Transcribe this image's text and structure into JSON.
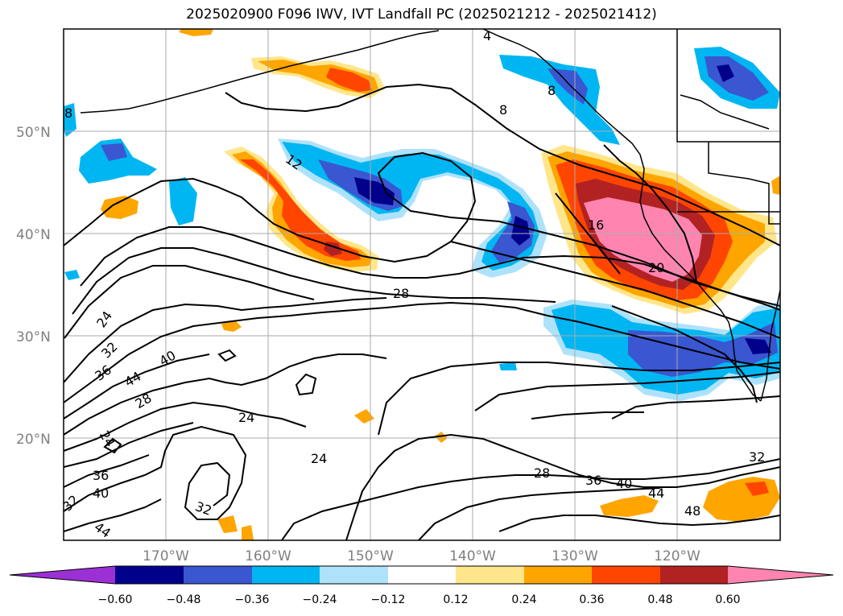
{
  "title": "2025020900 F096 IWV, IVT Landfall PC (2025021212 - 2025021412)",
  "map": {
    "projection": "plate-carree",
    "lon_range": [
      -180,
      -110
    ],
    "lat_range": [
      10,
      60
    ],
    "grid": true,
    "lat_ticks": [
      "50°N",
      "40°N",
      "30°N",
      "20°N"
    ],
    "lon_ticks": [
      "170°W",
      "160°W",
      "150°W",
      "140°W",
      "130°W",
      "120°W"
    ]
  },
  "contours": {
    "color": "#000000",
    "labels": [
      "8",
      "4",
      "8",
      "8",
      "12",
      "16",
      "20",
      "28",
      "24",
      "32",
      "36",
      "44",
      "40",
      "28",
      "24",
      "24",
      "24",
      "36",
      "40",
      "32",
      "28",
      "36",
      "40",
      "44",
      "48",
      "32",
      "44"
    ]
  },
  "colorbar": {
    "extend": "both",
    "ticks": [
      "−0.60",
      "−0.48",
      "−0.36",
      "−0.24",
      "−0.12",
      "0.12",
      "0.24",
      "0.36",
      "0.48",
      "0.60"
    ],
    "colors": [
      "#9b30d4",
      "#00008b",
      "#3a56d1",
      "#00b6f2",
      "#aee2fb",
      "#ffffff",
      "#ffe68a",
      "#ffa500",
      "#ff4500",
      "#b22222",
      "#ff85b0"
    ]
  }
}
